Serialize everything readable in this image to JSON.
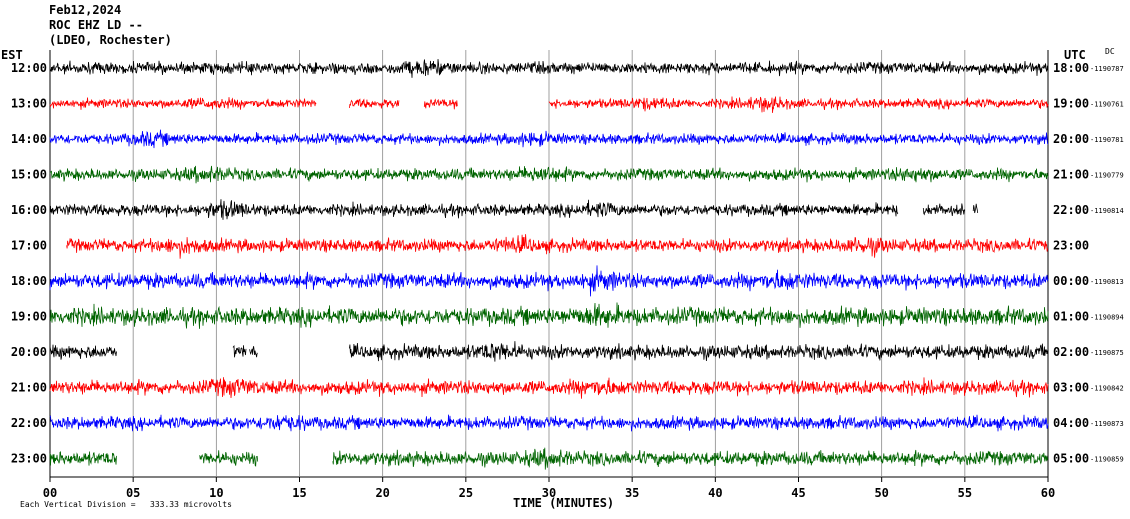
{
  "header": {
    "date": "Feb12,2024",
    "station": "ROC EHZ LD --",
    "network": "(LDEO, Rochester)"
  },
  "left_axis_label": "EST",
  "right_axis_label": "UTC",
  "dc_label": "DC",
  "x_axis_label": "TIME (MINUTES)",
  "footer": {
    "scale_label": "Each Vertical Division =",
    "scale_value": "333.33 microvolts"
  },
  "chart_data": {
    "type": "line",
    "title": "",
    "xlabel": "TIME (MINUTES)",
    "ylabel": "",
    "xlim": [
      0,
      60
    ],
    "x_ticks": [
      "00",
      "05",
      "10",
      "15",
      "20",
      "25",
      "30",
      "35",
      "40",
      "45",
      "50",
      "55",
      "60"
    ],
    "grid": "vertical every 5 minutes",
    "series": [
      {
        "est": "12:00",
        "utc": "18:00",
        "dc": "-1190787",
        "color": "#000000",
        "amp": 1.0,
        "data_ranges": [
          [
            0,
            60
          ]
        ],
        "bursts": [
          [
            22.5,
            1.6
          ]
        ]
      },
      {
        "est": "13:00",
        "utc": "19:00",
        "dc": "-1190761",
        "color": "#ff0000",
        "amp": 0.8,
        "data_ranges": [
          [
            0,
            16
          ],
          [
            18,
            21
          ],
          [
            22.5,
            24.5
          ],
          [
            30,
            60
          ]
        ],
        "bursts": [
          [
            9.5,
            1.4
          ],
          [
            36,
            1.6
          ],
          [
            43,
            1.8
          ]
        ]
      },
      {
        "est": "14:00",
        "utc": "20:00",
        "dc": "-1190781",
        "color": "#0000ff",
        "amp": 0.9,
        "data_ranges": [
          [
            0,
            60
          ]
        ],
        "bursts": [
          [
            6,
            1.6
          ],
          [
            29,
            1.5
          ]
        ]
      },
      {
        "est": "15:00",
        "utc": "21:00",
        "dc": "-1190779",
        "color": "#006400",
        "amp": 1.0,
        "data_ranges": [
          [
            0,
            60
          ]
        ],
        "bursts": [
          [
            9.5,
            1.6
          ],
          [
            29.5,
            1.7
          ],
          [
            52,
            1.5
          ]
        ]
      },
      {
        "est": "16:00",
        "utc": "22:00",
        "dc": "-1190814",
        "color": "#000000",
        "amp": 1.0,
        "data_ranges": [
          [
            0,
            51
          ],
          [
            52.5,
            55
          ],
          [
            55.5,
            55.8
          ]
        ],
        "bursts": [
          [
            10.5,
            1.8
          ],
          [
            33,
            1.5
          ]
        ]
      },
      {
        "est": "17:00",
        "utc": "23:00",
        "dc": "",
        "color": "#ff0000",
        "amp": 1.1,
        "data_ranges": [
          [
            1,
            60
          ]
        ],
        "bursts": [
          [
            8,
            1.6
          ],
          [
            28,
            1.5
          ],
          [
            49,
            1.6
          ]
        ]
      },
      {
        "est": "18:00",
        "utc": "00:00",
        "dc": "-1190813",
        "color": "#0000ff",
        "amp": 1.3,
        "data_ranges": [
          [
            0,
            60
          ]
        ],
        "bursts": [
          [
            33,
            1.6
          ],
          [
            44,
            1.5
          ]
        ]
      },
      {
        "est": "19:00",
        "utc": "01:00",
        "dc": "-1190894",
        "color": "#006400",
        "amp": 1.5,
        "data_ranges": [
          [
            0,
            60
          ]
        ],
        "bursts": [
          [
            33,
            1.5
          ]
        ]
      },
      {
        "est": "20:00",
        "utc": "02:00",
        "dc": "-1190875",
        "color": "#000000",
        "amp": 1.2,
        "data_ranges": [
          [
            0,
            4
          ],
          [
            11,
            11.8
          ],
          [
            12,
            12.5
          ],
          [
            18,
            60
          ]
        ],
        "bursts": [
          [
            27,
            1.6
          ]
        ]
      },
      {
        "est": "21:00",
        "utc": "03:00",
        "dc": "-1190842",
        "color": "#ff0000",
        "amp": 1.2,
        "data_ranges": [
          [
            0,
            60
          ]
        ],
        "bursts": [
          [
            11,
            1.5
          ],
          [
            33,
            1.5
          ]
        ]
      },
      {
        "est": "22:00",
        "utc": "04:00",
        "dc": "-1190873",
        "color": "#0000ff",
        "amp": 1.1,
        "data_ranges": [
          [
            0,
            60
          ]
        ],
        "bursts": [
          [
            14,
            1.5
          ]
        ]
      },
      {
        "est": "23:00",
        "utc": "05:00",
        "dc": "-1190859",
        "color": "#006400",
        "amp": 1.2,
        "data_ranges": [
          [
            0,
            4
          ],
          [
            9,
            12.5
          ],
          [
            17,
            60
          ]
        ],
        "bursts": [
          [
            30,
            1.5
          ]
        ]
      }
    ]
  }
}
